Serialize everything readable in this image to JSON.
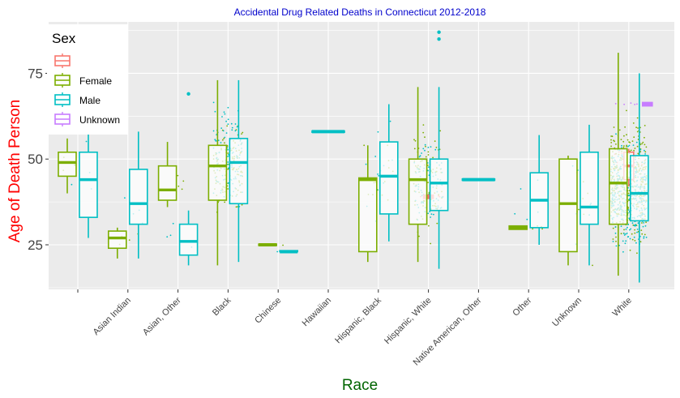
{
  "chart_data": {
    "type": "box",
    "title": "Accidental Drug Related Deaths in Connecticut 2012-2018",
    "xlabel": "Race",
    "ylabel": "Age of Death Person",
    "categories": [
      "",
      "Asian Indian",
      "Asian, Other",
      "Black",
      "Chinese",
      "Hawaiian",
      "Hispanic, Black",
      "Hispanic, White",
      "Native American, Other",
      "Other",
      "Unknown",
      "White"
    ],
    "y_ticks": [
      25,
      50,
      75
    ],
    "ylim": [
      12,
      90
    ],
    "legend": {
      "title": "Sex",
      "placement": "top-left",
      "entries": [
        {
          "label": "",
          "color": "#F8766D"
        },
        {
          "label": "Female",
          "color": "#7CAE00"
        },
        {
          "label": "Male",
          "color": "#00BFC4"
        },
        {
          "label": "Unknown",
          "color": "#C77CFF"
        }
      ]
    },
    "colors": {
      "title": "#0000cc",
      "ylabel": "#ff0000",
      "xlabel": "#006400",
      "panel": "#ebebeb"
    },
    "series": [
      {
        "name": "",
        "color": "#F8766D",
        "boxes": [
          {
            "category": "Hispanic, White",
            "q1": 38.5,
            "median": 39,
            "q3": 39.5,
            "low": 38.5,
            "high": 39.5
          },
          {
            "category": "White",
            "q1": 44,
            "median": 48,
            "q3": 52,
            "low": 42,
            "high": 53
          }
        ]
      },
      {
        "name": "Female",
        "color": "#7CAE00",
        "boxes": [
          {
            "category": "",
            "q1": 45,
            "median": 49,
            "q3": 52,
            "low": 40,
            "high": 56
          },
          {
            "category": "Asian Indian",
            "q1": 24,
            "median": 27,
            "q3": 29,
            "low": 21,
            "high": 30
          },
          {
            "category": "Asian, Other",
            "q1": 38,
            "median": 41,
            "q3": 48,
            "low": 36,
            "high": 55
          },
          {
            "category": "Black",
            "q1": 38,
            "median": 48,
            "q3": 54,
            "low": 19,
            "high": 73
          },
          {
            "category": "Chinese",
            "q1": 24.8,
            "median": 25,
            "q3": 25.2,
            "low": 24.8,
            "high": 25.2
          },
          {
            "category": "Hispanic, Black",
            "q1": 23,
            "median": 44,
            "q3": 44.5,
            "low": 20,
            "high": 54
          },
          {
            "category": "Hispanic, White",
            "q1": 31,
            "median": 44,
            "q3": 50,
            "low": 20,
            "high": 71
          },
          {
            "category": "Other",
            "q1": 29.5,
            "median": 30,
            "q3": 30.5,
            "low": 29.5,
            "high": 30.5
          },
          {
            "category": "Unknown",
            "q1": 23,
            "median": 37,
            "q3": 50,
            "low": 19,
            "high": 51
          },
          {
            "category": "White",
            "q1": 31,
            "median": 43,
            "q3": 53,
            "low": 16,
            "high": 81
          }
        ]
      },
      {
        "name": "Male",
        "color": "#00BFC4",
        "boxes": [
          {
            "category": "",
            "q1": 33,
            "median": 44,
            "q3": 52,
            "low": 27,
            "high": 60
          },
          {
            "category": "Asian Indian",
            "q1": 31,
            "median": 37,
            "q3": 47,
            "low": 21,
            "high": 58
          },
          {
            "category": "Asian, Other",
            "q1": 22,
            "median": 26,
            "q3": 31,
            "low": 19,
            "high": 35
          },
          {
            "category": "Black",
            "q1": 37,
            "median": 49,
            "q3": 56,
            "low": 20,
            "high": 73
          },
          {
            "category": "Chinese",
            "q1": 23,
            "median": 23,
            "q3": 23.3,
            "low": 23,
            "high": 23.3
          },
          {
            "category": "Hawaiian",
            "q1": 57.8,
            "median": 58,
            "q3": 58.2,
            "low": 57.8,
            "high": 58.2
          },
          {
            "category": "Hispanic, Black",
            "q1": 34,
            "median": 45,
            "q3": 55,
            "low": 26,
            "high": 66
          },
          {
            "category": "Hispanic, White",
            "q1": 35,
            "median": 43,
            "q3": 50,
            "low": 18,
            "high": 71
          },
          {
            "category": "Native American, Other",
            "q1": 43.8,
            "median": 44,
            "q3": 44.2,
            "low": 43.8,
            "high": 44.2
          },
          {
            "category": "Other",
            "q1": 30,
            "median": 38,
            "q3": 46,
            "low": 25,
            "high": 57
          },
          {
            "category": "Unknown",
            "q1": 31,
            "median": 36,
            "q3": 52,
            "low": 19,
            "high": 60
          },
          {
            "category": "White",
            "q1": 32,
            "median": 40,
            "q3": 51,
            "low": 14,
            "high": 75
          }
        ]
      },
      {
        "name": "Unknown",
        "color": "#C77CFF",
        "boxes": [
          {
            "category": "White",
            "q1": 65.5,
            "median": 66,
            "q3": 66.5,
            "low": 65.5,
            "high": 66.5
          }
        ]
      }
    ],
    "outliers": [
      {
        "category": "Asian, Other",
        "series": "Male",
        "y": 69
      },
      {
        "category": "Hispanic, White",
        "series": "Male",
        "y": 85
      },
      {
        "category": "Hispanic, White",
        "series": "Male",
        "y": 87
      }
    ]
  }
}
